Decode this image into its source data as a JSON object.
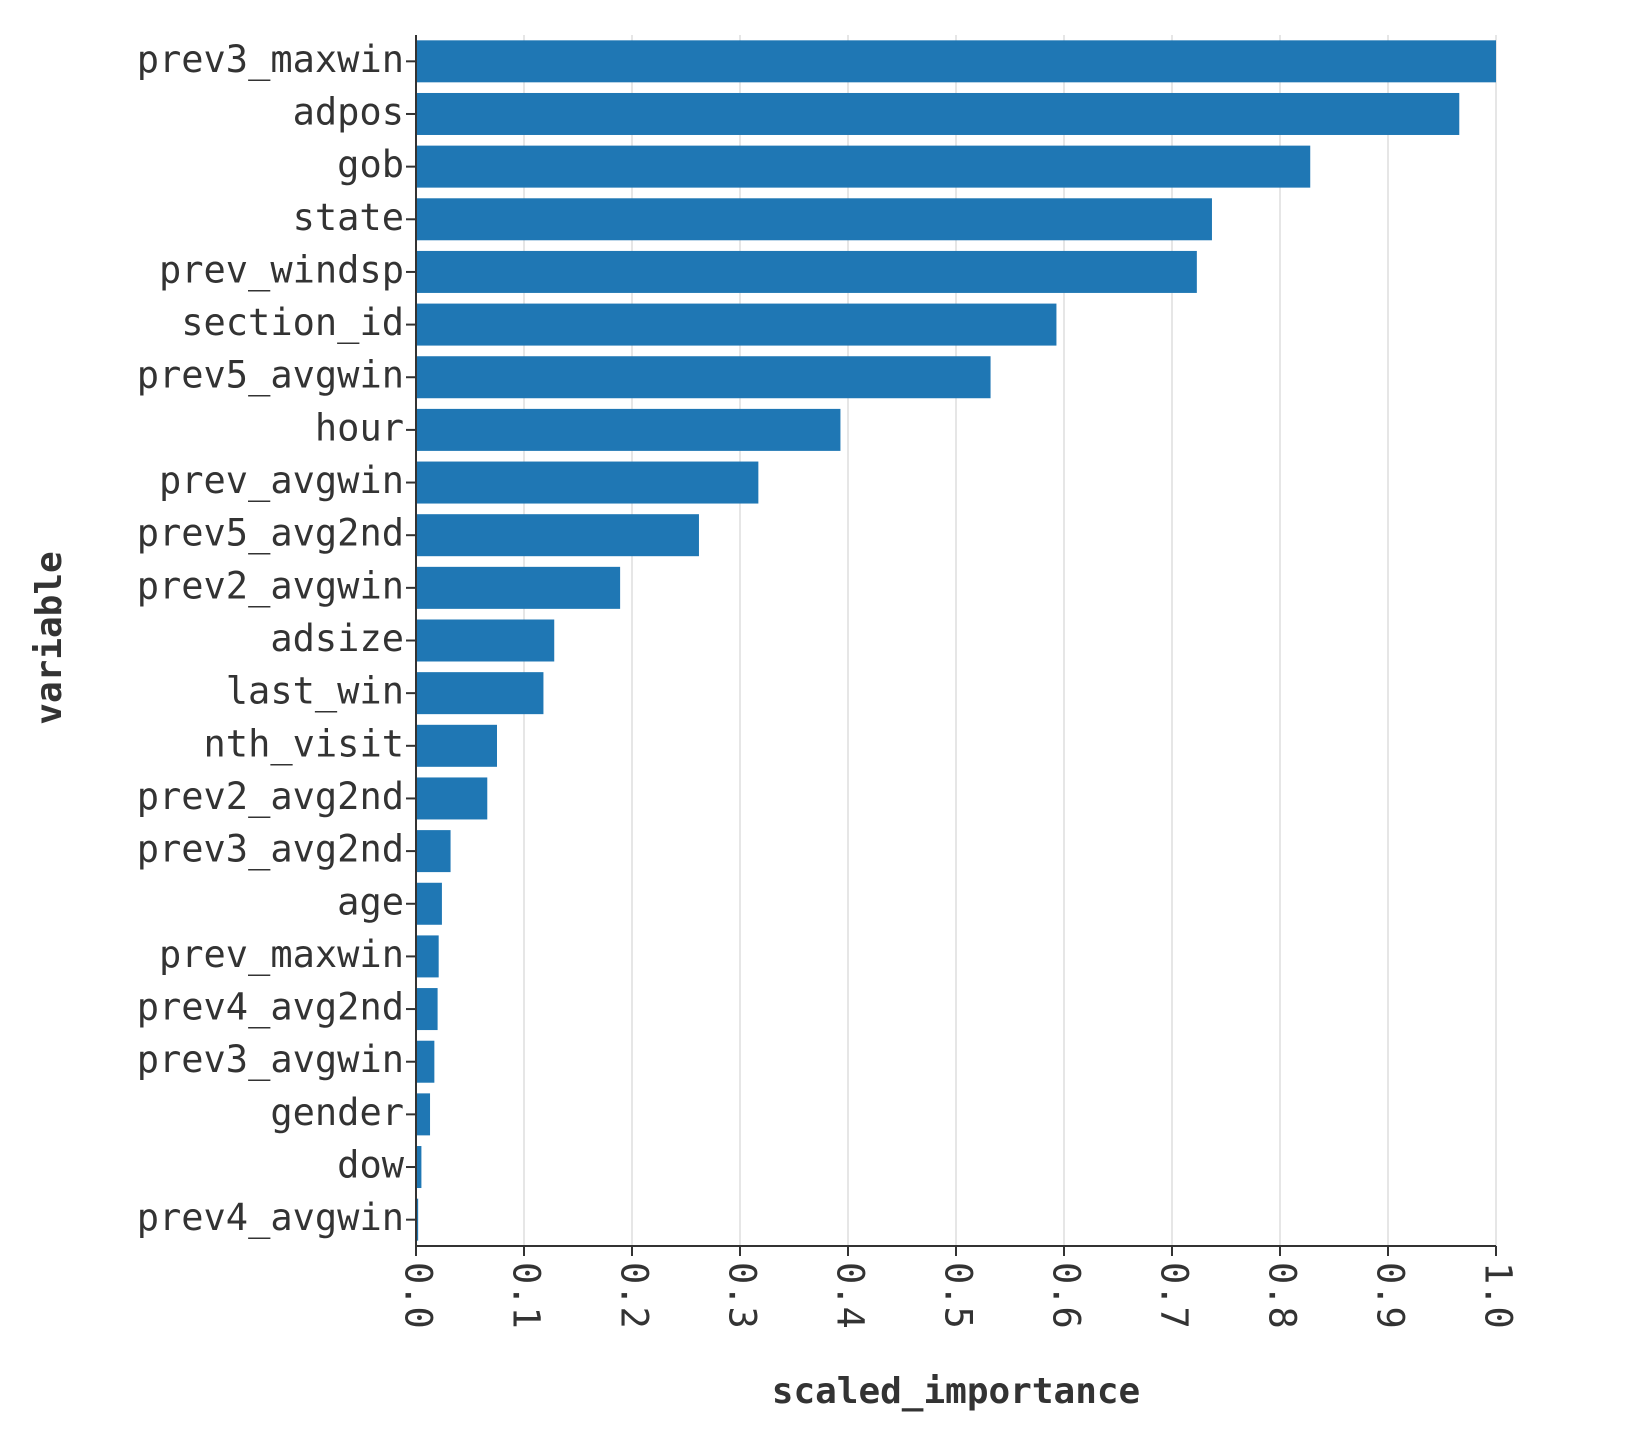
{
  "chart_data": {
    "type": "hbar",
    "x_label": "scaled_importance",
    "y_label": "variable",
    "categories": [
      "prev3_maxwin",
      "adpos",
      "gob",
      "state",
      "prev_windsp",
      "section_id",
      "prev5_avgwin",
      "hour",
      "prev_avgwin",
      "prev5_avg2nd",
      "prev2_avgwin",
      "adsize",
      "last_win",
      "nth_visit",
      "prev2_avg2nd",
      "prev3_avg2nd",
      "age",
      "prev_maxwin",
      "prev4_avg2nd",
      "prev3_avgwin",
      "gender",
      "dow",
      "prev4_avgwin"
    ],
    "values": [
      1.0,
      0.966,
      0.828,
      0.737,
      0.723,
      0.593,
      0.532,
      0.393,
      0.317,
      0.262,
      0.189,
      0.128,
      0.118,
      0.075,
      0.066,
      0.032,
      0.024,
      0.021,
      0.02,
      0.017,
      0.013,
      0.005,
      0.002
    ],
    "color": "#1f77b4",
    "xlim": [
      0,
      1
    ],
    "xticks": [
      {
        "value": 0,
        "label": "0.0"
      },
      0.1,
      0.2,
      0.3,
      0.4,
      0.5,
      0.6,
      0.7,
      0.8,
      0.9,
      {
        "value": 1,
        "label": "1.0"
      }
    ],
    "grid": true
  }
}
